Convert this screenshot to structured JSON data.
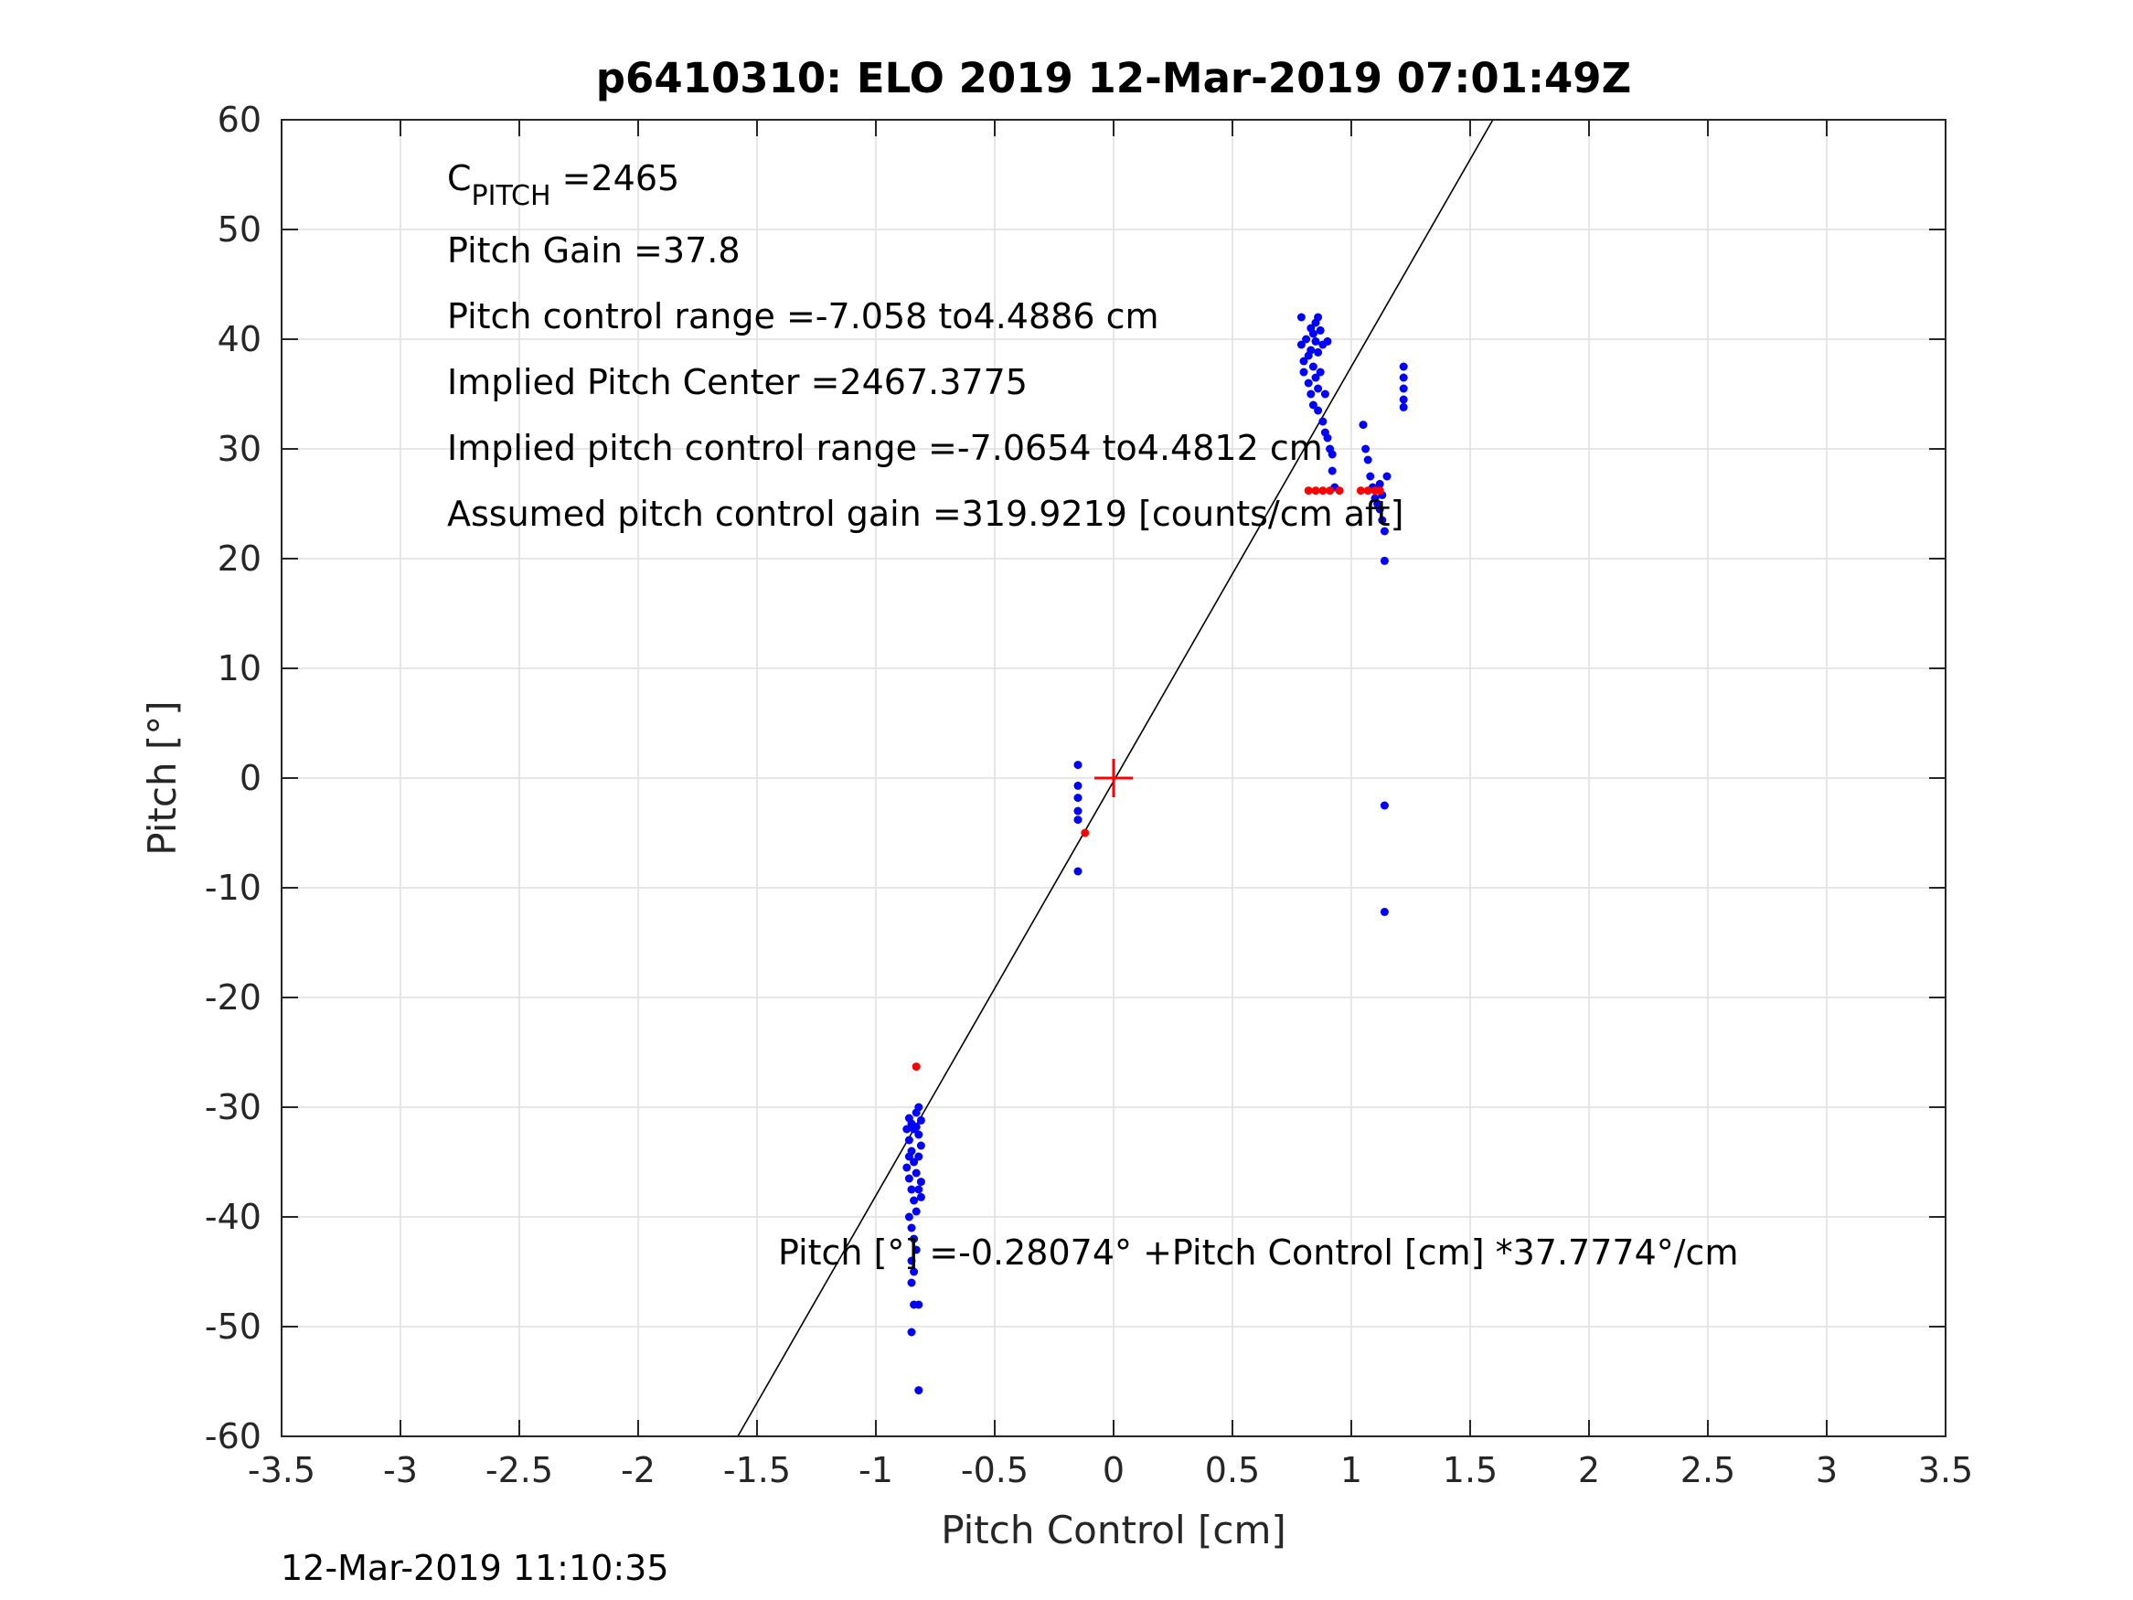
{
  "chart_data": {
    "type": "scatter",
    "title": "p6410310: ELO 2019 12-Mar-2019 07:01:49Z",
    "xlabel": "Pitch Control [cm]",
    "ylabel": "Pitch [°]",
    "xlim": [
      -3.5,
      3.5
    ],
    "ylim": [
      -60,
      60
    ],
    "x_ticks": [
      -3.5,
      -3,
      -2.5,
      -2,
      -1.5,
      -1,
      -0.5,
      0,
      0.5,
      1,
      1.5,
      2,
      2.5,
      3,
      3.5
    ],
    "x_tick_labels": [
      "-3.5",
      "-3",
      "-2.5",
      "-2",
      "-1.5",
      "-1",
      "-0.5",
      "0",
      "0.5",
      "1",
      "1.5",
      "2",
      "2.5",
      "3",
      "3.5"
    ],
    "y_ticks": [
      -60,
      -50,
      -40,
      -30,
      -20,
      -10,
      0,
      10,
      20,
      30,
      40,
      50,
      60
    ],
    "y_tick_labels": [
      "-60",
      "-50",
      "-40",
      "-30",
      "-20",
      "-10",
      "0",
      "10",
      "20",
      "30",
      "40",
      "50",
      "60"
    ],
    "grid": true,
    "fit_line": {
      "intercept": -0.28074,
      "slope": 37.7774,
      "color": "#000000"
    },
    "center_marker": {
      "x": 0,
      "y": 0,
      "color": "#ff0000"
    },
    "series": [
      {
        "color": "#0000ff",
        "points": [
          [
            -0.86,
            -31.0
          ],
          [
            -0.85,
            -31.5
          ],
          [
            -0.84,
            -32.0
          ],
          [
            -0.83,
            -30.5
          ],
          [
            -0.82,
            -30.0
          ],
          [
            -0.81,
            -31.2
          ],
          [
            -0.86,
            -33.0
          ],
          [
            -0.85,
            -34.0
          ],
          [
            -0.84,
            -35.0
          ],
          [
            -0.83,
            -36.0
          ],
          [
            -0.82,
            -32.5
          ],
          [
            -0.81,
            -33.5
          ],
          [
            -0.87,
            -35.5
          ],
          [
            -0.86,
            -36.5
          ],
          [
            -0.85,
            -37.5
          ],
          [
            -0.84,
            -38.5
          ],
          [
            -0.83,
            -39.5
          ],
          [
            -0.82,
            -34.5
          ],
          [
            -0.81,
            -36.8
          ],
          [
            -0.86,
            -40.0
          ],
          [
            -0.85,
            -41.0
          ],
          [
            -0.84,
            -42.0
          ],
          [
            -0.83,
            -43.0
          ],
          [
            -0.85,
            -44.0
          ],
          [
            -0.84,
            -45.0
          ],
          [
            -0.85,
            -46.0
          ],
          [
            -0.84,
            -48.0
          ],
          [
            -0.82,
            -48.0
          ],
          [
            -0.85,
            -50.5
          ],
          [
            -0.82,
            -55.8
          ],
          [
            -0.87,
            -32.0
          ],
          [
            -0.86,
            -34.5
          ],
          [
            -0.83,
            -31.8
          ],
          [
            -0.82,
            -37.5
          ],
          [
            -0.81,
            -38.2
          ],
          [
            -0.15,
            1.2
          ],
          [
            -0.15,
            -0.7
          ],
          [
            -0.15,
            -1.8
          ],
          [
            -0.15,
            -3.0
          ],
          [
            -0.15,
            -3.8
          ],
          [
            -0.15,
            -8.5
          ],
          [
            0.79,
            42.0
          ],
          [
            0.79,
            39.5
          ],
          [
            0.8,
            38.0
          ],
          [
            0.8,
            37.0
          ],
          [
            0.81,
            40.0
          ],
          [
            0.82,
            38.5
          ],
          [
            0.82,
            36.0
          ],
          [
            0.83,
            41.0
          ],
          [
            0.83,
            39.0
          ],
          [
            0.83,
            35.0
          ],
          [
            0.84,
            40.5
          ],
          [
            0.84,
            37.5
          ],
          [
            0.84,
            34.0
          ],
          [
            0.85,
            41.5
          ],
          [
            0.85,
            39.8
          ],
          [
            0.85,
            36.5
          ],
          [
            0.86,
            42.0
          ],
          [
            0.86,
            38.8
          ],
          [
            0.86,
            35.5
          ],
          [
            0.86,
            33.5
          ],
          [
            0.87,
            40.8
          ],
          [
            0.87,
            37.0
          ],
          [
            0.88,
            39.5
          ],
          [
            0.88,
            32.5
          ],
          [
            0.89,
            31.5
          ],
          [
            0.89,
            35.0
          ],
          [
            0.9,
            39.8
          ],
          [
            0.9,
            31.0
          ],
          [
            0.91,
            30.0
          ],
          [
            0.92,
            29.5
          ],
          [
            0.92,
            28.0
          ],
          [
            0.93,
            26.5
          ],
          [
            1.05,
            32.2
          ],
          [
            1.06,
            30.0
          ],
          [
            1.07,
            29.0
          ],
          [
            1.08,
            27.5
          ],
          [
            1.09,
            26.5
          ],
          [
            1.1,
            25.5
          ],
          [
            1.11,
            25.0
          ],
          [
            1.12,
            24.5
          ],
          [
            1.13,
            23.5
          ],
          [
            1.14,
            22.5
          ],
          [
            1.15,
            27.5
          ],
          [
            1.12,
            26.8
          ],
          [
            1.13,
            25.8
          ],
          [
            1.14,
            19.8
          ],
          [
            1.14,
            -2.5
          ],
          [
            1.14,
            -12.2
          ],
          [
            1.22,
            37.5
          ],
          [
            1.22,
            36.5
          ],
          [
            1.22,
            35.5
          ],
          [
            1.22,
            34.5
          ],
          [
            1.22,
            33.8
          ]
        ]
      },
      {
        "color": "#ff0000",
        "points": [
          [
            -0.83,
            -26.3
          ],
          [
            -0.12,
            -5.0
          ],
          [
            0.82,
            26.2
          ],
          [
            0.85,
            26.2
          ],
          [
            0.88,
            26.2
          ],
          [
            0.91,
            26.2
          ],
          [
            0.95,
            26.2
          ],
          [
            1.04,
            26.2
          ],
          [
            1.07,
            26.2
          ],
          [
            1.1,
            26.2
          ],
          [
            1.12,
            26.2
          ]
        ]
      }
    ],
    "annotations": {
      "cpitch_main": "C",
      "cpitch_sub": "PITCH",
      "cpitch_value": " =2465",
      "pitch_gain": "Pitch Gain =37.8",
      "control_range": "Pitch control range =-7.058 to4.4886 cm",
      "implied_center": "Implied Pitch Center =2467.3775",
      "implied_range": "Implied pitch control range =-7.0654 to4.4812 cm",
      "assumed_gain": "Assumed pitch control gain =319.9219 [counts/cm aft]",
      "equation": "Pitch [°] =-0.28074° +Pitch Control [cm] *37.7774°/cm"
    },
    "timestamp": "12-Mar-2019 11:10:35"
  }
}
